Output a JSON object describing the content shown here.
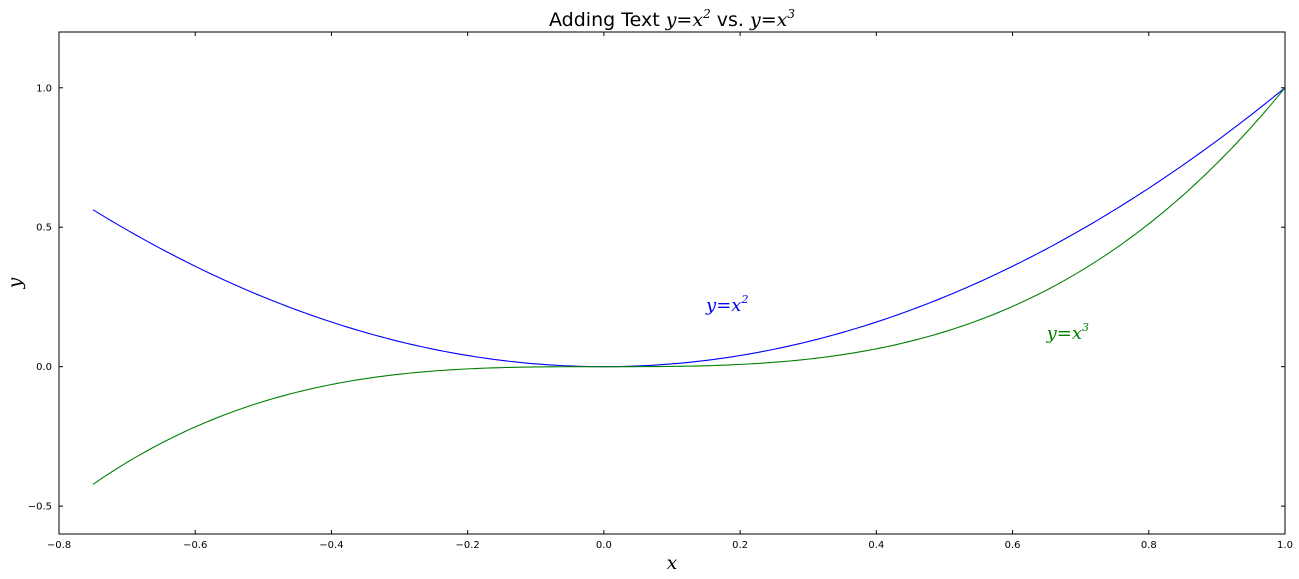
{
  "chart_data": {
    "type": "line",
    "title": {
      "prefix": "Adding Text ",
      "eq1_base": "y=x",
      "eq1_exp": "2",
      "sep": "  vs. ",
      "eq2_base": "y=x",
      "eq2_exp": "3"
    },
    "xlabel": "x",
    "ylabel": "y",
    "xlim": [
      -0.8,
      1.0
    ],
    "ylim": [
      -0.6,
      1.2
    ],
    "xticks": [
      -0.8,
      -0.6,
      -0.4,
      -0.2,
      0.0,
      0.2,
      0.4,
      0.6,
      0.8,
      1.0
    ],
    "xtick_labels": [
      "−0.8",
      "−0.6",
      "−0.4",
      "−0.2",
      "0.0",
      "0.2",
      "0.4",
      "0.6",
      "0.8",
      "1.0"
    ],
    "yticks": [
      -0.5,
      0.0,
      0.5,
      1.0
    ],
    "ytick_labels": [
      "−0.5",
      "0.0",
      "0.5",
      "1.0"
    ],
    "grid": false,
    "x_start": -0.75,
    "x_end": 1.0,
    "series": [
      {
        "function": "x^2",
        "color": "#0000ff",
        "x": [
          -0.75,
          -0.6,
          -0.4,
          -0.2,
          0.0,
          0.2,
          0.4,
          0.6,
          0.8,
          1.0
        ],
        "y": [
          0.5625,
          0.36,
          0.16,
          0.04,
          0.0,
          0.04,
          0.16,
          0.36,
          0.64,
          1.0
        ]
      },
      {
        "function": "x^3",
        "color": "#008000",
        "x": [
          -0.75,
          -0.6,
          -0.4,
          -0.2,
          0.0,
          0.2,
          0.4,
          0.6,
          0.8,
          1.0
        ],
        "y": [
          -0.421875,
          -0.216,
          -0.064,
          -0.008,
          0.0,
          0.008,
          0.064,
          0.216,
          0.512,
          1.0
        ]
      }
    ],
    "annotations": [
      {
        "base": "y=x",
        "exp": "2",
        "x": 0.15,
        "y": 0.2,
        "color": "#0000ff"
      },
      {
        "base": "y=x",
        "exp": "3",
        "x": 0.65,
        "y": 0.1,
        "color": "#008000"
      }
    ]
  }
}
